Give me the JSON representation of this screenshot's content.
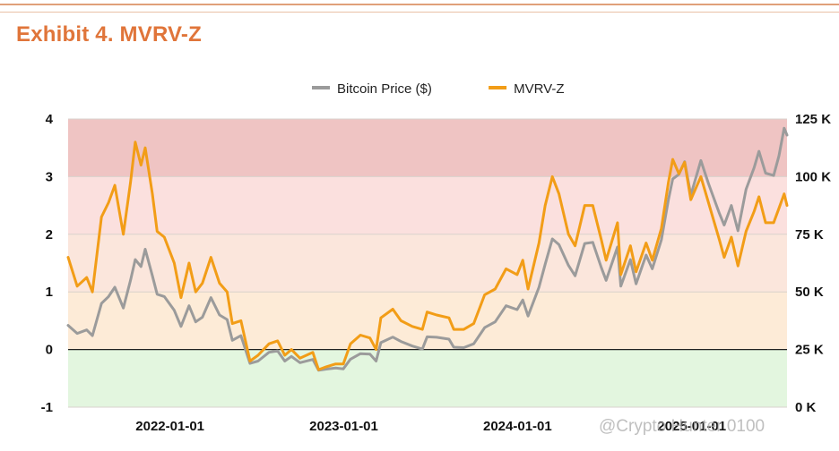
{
  "header": {
    "title": "Exhibit 4. MVRV-Z"
  },
  "watermark": "@Crypto Hunter 0100",
  "colors": {
    "bitcoin_price": "#9b9b9b",
    "mvrv_z": "#f29d17",
    "zone_red": "#efc4c3",
    "zone_pink": "#fbe0de",
    "zone_peach": "#fbe6dc",
    "zone_orange": "#fdebd7",
    "zone_green": "#e3f6df"
  },
  "chart_data": {
    "type": "line",
    "legend_position": "top-center",
    "grid": true,
    "x_ticks": [
      "2022-01-01",
      "2023-01-01",
      "2024-01-01",
      "2025-01-01"
    ],
    "xlim": [
      "2021-06-01",
      "2025-07-20"
    ],
    "y_left": {
      "lim": [
        -1,
        4
      ],
      "ticks": [
        "-1",
        "0",
        "1",
        "2",
        "3",
        "4"
      ]
    },
    "y_right": {
      "lim": [
        0,
        125000
      ],
      "ticks": [
        "0 K",
        "25 K",
        "50 K",
        "75 K",
        "100 K",
        "125 K"
      ]
    },
    "bands": [
      {
        "from": 3,
        "to": 4,
        "color": "zone_red"
      },
      {
        "from": 2,
        "to": 3,
        "color": "zone_pink"
      },
      {
        "from": 1,
        "to": 2,
        "color": "zone_peach"
      },
      {
        "from": 0,
        "to": 1,
        "color": "zone_orange"
      },
      {
        "from": -1,
        "to": 0,
        "color": "zone_green"
      }
    ],
    "series": [
      {
        "name": "Bitcoin Price ($)",
        "axis": "right",
        "color": "bitcoin_price",
        "points": [
          [
            "2021-06-01",
            35500
          ],
          [
            "2021-06-20",
            32000
          ],
          [
            "2021-07-10",
            33500
          ],
          [
            "2021-07-22",
            31000
          ],
          [
            "2021-08-10",
            45000
          ],
          [
            "2021-08-25",
            48000
          ],
          [
            "2021-09-07",
            52000
          ],
          [
            "2021-09-25",
            43000
          ],
          [
            "2021-10-10",
            55000
          ],
          [
            "2021-10-20",
            64000
          ],
          [
            "2021-11-01",
            61000
          ],
          [
            "2021-11-10",
            68500
          ],
          [
            "2021-11-25",
            57000
          ],
          [
            "2021-12-05",
            49000
          ],
          [
            "2021-12-20",
            48000
          ],
          [
            "2022-01-10",
            42000
          ],
          [
            "2022-01-24",
            35000
          ],
          [
            "2022-02-10",
            44000
          ],
          [
            "2022-02-24",
            37000
          ],
          [
            "2022-03-10",
            39000
          ],
          [
            "2022-03-28",
            47500
          ],
          [
            "2022-04-15",
            40000
          ],
          [
            "2022-05-01",
            38000
          ],
          [
            "2022-05-12",
            29000
          ],
          [
            "2022-05-30",
            31000
          ],
          [
            "2022-06-18",
            19000
          ],
          [
            "2022-07-05",
            20000
          ],
          [
            "2022-07-28",
            23800
          ],
          [
            "2022-08-15",
            24400
          ],
          [
            "2022-08-30",
            20000
          ],
          [
            "2022-09-13",
            22000
          ],
          [
            "2022-10-01",
            19300
          ],
          [
            "2022-10-28",
            20700
          ],
          [
            "2022-11-09",
            16000
          ],
          [
            "2022-11-25",
            16500
          ],
          [
            "2022-12-15",
            17000
          ],
          [
            "2022-12-31",
            16600
          ],
          [
            "2023-01-15",
            20800
          ],
          [
            "2023-02-05",
            23200
          ],
          [
            "2023-02-25",
            23000
          ],
          [
            "2023-03-10",
            20000
          ],
          [
            "2023-03-20",
            28000
          ],
          [
            "2023-04-14",
            30400
          ],
          [
            "2023-05-01",
            28500
          ],
          [
            "2023-05-25",
            26500
          ],
          [
            "2023-06-15",
            25200
          ],
          [
            "2023-06-25",
            30500
          ],
          [
            "2023-07-15",
            30300
          ],
          [
            "2023-08-10",
            29500
          ],
          [
            "2023-08-20",
            26000
          ],
          [
            "2023-09-10",
            25800
          ],
          [
            "2023-10-01",
            27500
          ],
          [
            "2023-10-24",
            34500
          ],
          [
            "2023-11-15",
            37000
          ],
          [
            "2023-12-08",
            44000
          ],
          [
            "2023-12-31",
            42300
          ],
          [
            "2024-01-12",
            46500
          ],
          [
            "2024-01-23",
            39500
          ],
          [
            "2024-02-15",
            52000
          ],
          [
            "2024-02-28",
            62000
          ],
          [
            "2024-03-14",
            73000
          ],
          [
            "2024-03-28",
            70500
          ],
          [
            "2024-04-17",
            61500
          ],
          [
            "2024-05-01",
            57000
          ],
          [
            "2024-05-21",
            71000
          ],
          [
            "2024-06-07",
            71500
          ],
          [
            "2024-06-25",
            60500
          ],
          [
            "2024-07-05",
            55000
          ],
          [
            "2024-07-29",
            69500
          ],
          [
            "2024-08-05",
            52500
          ],
          [
            "2024-08-25",
            64000
          ],
          [
            "2024-09-06",
            53500
          ],
          [
            "2024-09-27",
            66000
          ],
          [
            "2024-10-10",
            60000
          ],
          [
            "2024-10-29",
            72500
          ],
          [
            "2024-11-13",
            90000
          ],
          [
            "2024-11-22",
            99000
          ],
          [
            "2024-12-05",
            101000
          ],
          [
            "2024-12-17",
            106500
          ],
          [
            "2024-12-30",
            92000
          ],
          [
            "2025-01-20",
            107000
          ],
          [
            "2025-02-05",
            97000
          ],
          [
            "2025-02-28",
            84000
          ],
          [
            "2025-03-10",
            79000
          ],
          [
            "2025-03-25",
            87500
          ],
          [
            "2025-04-08",
            76500
          ],
          [
            "2025-04-25",
            94500
          ],
          [
            "2025-05-12",
            104000
          ],
          [
            "2025-05-22",
            111000
          ],
          [
            "2025-06-05",
            101500
          ],
          [
            "2025-06-22",
            100500
          ],
          [
            "2025-07-03",
            109000
          ],
          [
            "2025-07-14",
            121000
          ],
          [
            "2025-07-20",
            118000
          ]
        ]
      },
      {
        "name": "MVRV-Z",
        "axis": "left",
        "color": "mvrv_z",
        "points": [
          [
            "2021-06-01",
            1.6
          ],
          [
            "2021-06-20",
            1.1
          ],
          [
            "2021-07-10",
            1.25
          ],
          [
            "2021-07-22",
            1.0
          ],
          [
            "2021-08-10",
            2.3
          ],
          [
            "2021-08-25",
            2.55
          ],
          [
            "2021-09-07",
            2.85
          ],
          [
            "2021-09-25",
            2.0
          ],
          [
            "2021-10-10",
            2.9
          ],
          [
            "2021-10-20",
            3.6
          ],
          [
            "2021-11-01",
            3.2
          ],
          [
            "2021-11-10",
            3.5
          ],
          [
            "2021-11-25",
            2.7
          ],
          [
            "2021-12-05",
            2.05
          ],
          [
            "2021-12-20",
            1.95
          ],
          [
            "2022-01-10",
            1.5
          ],
          [
            "2022-01-24",
            0.9
          ],
          [
            "2022-02-10",
            1.5
          ],
          [
            "2022-02-24",
            1.0
          ],
          [
            "2022-03-10",
            1.15
          ],
          [
            "2022-03-28",
            1.6
          ],
          [
            "2022-04-15",
            1.15
          ],
          [
            "2022-05-01",
            1.0
          ],
          [
            "2022-05-12",
            0.45
          ],
          [
            "2022-05-30",
            0.5
          ],
          [
            "2022-06-18",
            -0.2
          ],
          [
            "2022-07-05",
            -0.1
          ],
          [
            "2022-07-28",
            0.1
          ],
          [
            "2022-08-15",
            0.15
          ],
          [
            "2022-08-30",
            -0.1
          ],
          [
            "2022-09-13",
            0.0
          ],
          [
            "2022-10-01",
            -0.15
          ],
          [
            "2022-10-28",
            -0.05
          ],
          [
            "2022-11-09",
            -0.35
          ],
          [
            "2022-11-25",
            -0.3
          ],
          [
            "2022-12-15",
            -0.25
          ],
          [
            "2022-12-31",
            -0.25
          ],
          [
            "2023-01-15",
            0.1
          ],
          [
            "2023-02-05",
            0.25
          ],
          [
            "2023-02-25",
            0.2
          ],
          [
            "2023-03-10",
            0.0
          ],
          [
            "2023-03-20",
            0.55
          ],
          [
            "2023-04-14",
            0.7
          ],
          [
            "2023-05-01",
            0.5
          ],
          [
            "2023-05-25",
            0.4
          ],
          [
            "2023-06-15",
            0.35
          ],
          [
            "2023-06-25",
            0.65
          ],
          [
            "2023-07-15",
            0.6
          ],
          [
            "2023-08-10",
            0.55
          ],
          [
            "2023-08-20",
            0.35
          ],
          [
            "2023-09-10",
            0.35
          ],
          [
            "2023-10-01",
            0.45
          ],
          [
            "2023-10-24",
            0.95
          ],
          [
            "2023-11-15",
            1.05
          ],
          [
            "2023-12-08",
            1.4
          ],
          [
            "2023-12-31",
            1.3
          ],
          [
            "2024-01-12",
            1.55
          ],
          [
            "2024-01-23",
            1.05
          ],
          [
            "2024-02-15",
            1.85
          ],
          [
            "2024-02-28",
            2.5
          ],
          [
            "2024-03-14",
            3.0
          ],
          [
            "2024-03-28",
            2.7
          ],
          [
            "2024-04-17",
            2.0
          ],
          [
            "2024-05-01",
            1.8
          ],
          [
            "2024-05-21",
            2.5
          ],
          [
            "2024-06-07",
            2.5
          ],
          [
            "2024-06-25",
            1.9
          ],
          [
            "2024-07-05",
            1.55
          ],
          [
            "2024-07-29",
            2.2
          ],
          [
            "2024-08-05",
            1.3
          ],
          [
            "2024-08-25",
            1.8
          ],
          [
            "2024-09-06",
            1.35
          ],
          [
            "2024-09-27",
            1.85
          ],
          [
            "2024-10-10",
            1.55
          ],
          [
            "2024-10-29",
            2.1
          ],
          [
            "2024-11-13",
            2.9
          ],
          [
            "2024-11-22",
            3.3
          ],
          [
            "2024-12-05",
            3.05
          ],
          [
            "2024-12-17",
            3.25
          ],
          [
            "2024-12-30",
            2.6
          ],
          [
            "2025-01-20",
            3.0
          ],
          [
            "2025-02-05",
            2.55
          ],
          [
            "2025-02-28",
            1.9
          ],
          [
            "2025-03-10",
            1.6
          ],
          [
            "2025-03-25",
            1.95
          ],
          [
            "2025-04-08",
            1.45
          ],
          [
            "2025-04-25",
            2.05
          ],
          [
            "2025-05-12",
            2.4
          ],
          [
            "2025-05-22",
            2.65
          ],
          [
            "2025-06-05",
            2.2
          ],
          [
            "2025-06-22",
            2.2
          ],
          [
            "2025-07-03",
            2.45
          ],
          [
            "2025-07-14",
            2.7
          ],
          [
            "2025-07-20",
            2.5
          ]
        ]
      }
    ]
  }
}
